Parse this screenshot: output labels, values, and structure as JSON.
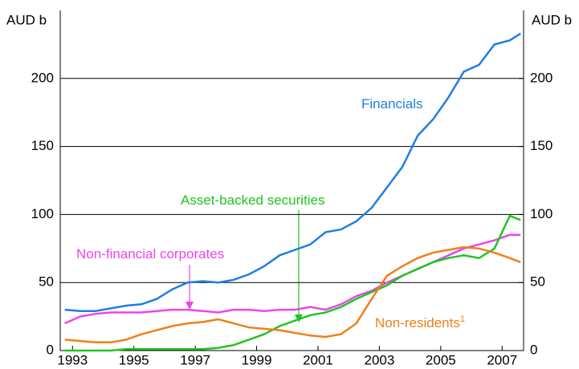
{
  "chart_data": {
    "type": "line",
    "y_label": "AUD b",
    "y2_label": "AUD b",
    "xlim": [
      1992.6,
      2007.7
    ],
    "xticks": [
      1993,
      1995,
      1997,
      1999,
      2001,
      2003,
      2005,
      2007
    ],
    "ylim": [
      0,
      250
    ],
    "yticks": [
      0,
      50,
      100,
      150,
      200
    ],
    "y2lim": [
      0,
      250
    ],
    "y2ticks": [
      0,
      50,
      100,
      150,
      200
    ],
    "grid": true,
    "x": [
      1992.75,
      1993.25,
      1993.75,
      1994.25,
      1994.75,
      1995.25,
      1995.75,
      1996.25,
      1996.75,
      1997.25,
      1997.75,
      1998.25,
      1998.75,
      1999.25,
      1999.75,
      2000.25,
      2000.75,
      2001.25,
      2001.75,
      2002.25,
      2002.75,
      2003.25,
      2003.75,
      2004.25,
      2004.75,
      2005.25,
      2005.75,
      2006.25,
      2006.75,
      2007.25,
      2007.6
    ],
    "series": [
      {
        "name": "Financials",
        "color": "#1f7fe0",
        "values": [
          30,
          29,
          29,
          31,
          33,
          34,
          38,
          45,
          50,
          51,
          50,
          52,
          56,
          62,
          70,
          74,
          78,
          87,
          89,
          95,
          105,
          120,
          135,
          158,
          170,
          186,
          205,
          210,
          225,
          228,
          233
        ]
      },
      {
        "name": "Non-financial corporates",
        "color": "#ee44ee",
        "values": [
          20,
          25,
          27,
          28,
          28,
          28,
          29,
          30,
          30,
          29,
          28,
          30,
          30,
          29,
          30,
          30,
          32,
          30,
          34,
          40,
          44,
          50,
          55,
          60,
          65,
          70,
          75,
          78,
          81,
          85,
          85
        ]
      },
      {
        "name": "Asset-backed securities",
        "color": "#22c422",
        "values": [
          0,
          0,
          0,
          0,
          1,
          1,
          1,
          1,
          1,
          1,
          2,
          4,
          8,
          12,
          18,
          22,
          26,
          28,
          32,
          38,
          43,
          48,
          55,
          60,
          65,
          68,
          70,
          68,
          75,
          99,
          96
        ]
      },
      {
        "name": "Non-residents",
        "color": "#f07f1a",
        "values": [
          8,
          7,
          6,
          6,
          8,
          12,
          15,
          18,
          20,
          21,
          23,
          20,
          17,
          16,
          15,
          13,
          11,
          10,
          12,
          20,
          38,
          55,
          62,
          68,
          72,
          74,
          76,
          75,
          72,
          68,
          65
        ]
      }
    ],
    "footnote_mark": "1"
  }
}
